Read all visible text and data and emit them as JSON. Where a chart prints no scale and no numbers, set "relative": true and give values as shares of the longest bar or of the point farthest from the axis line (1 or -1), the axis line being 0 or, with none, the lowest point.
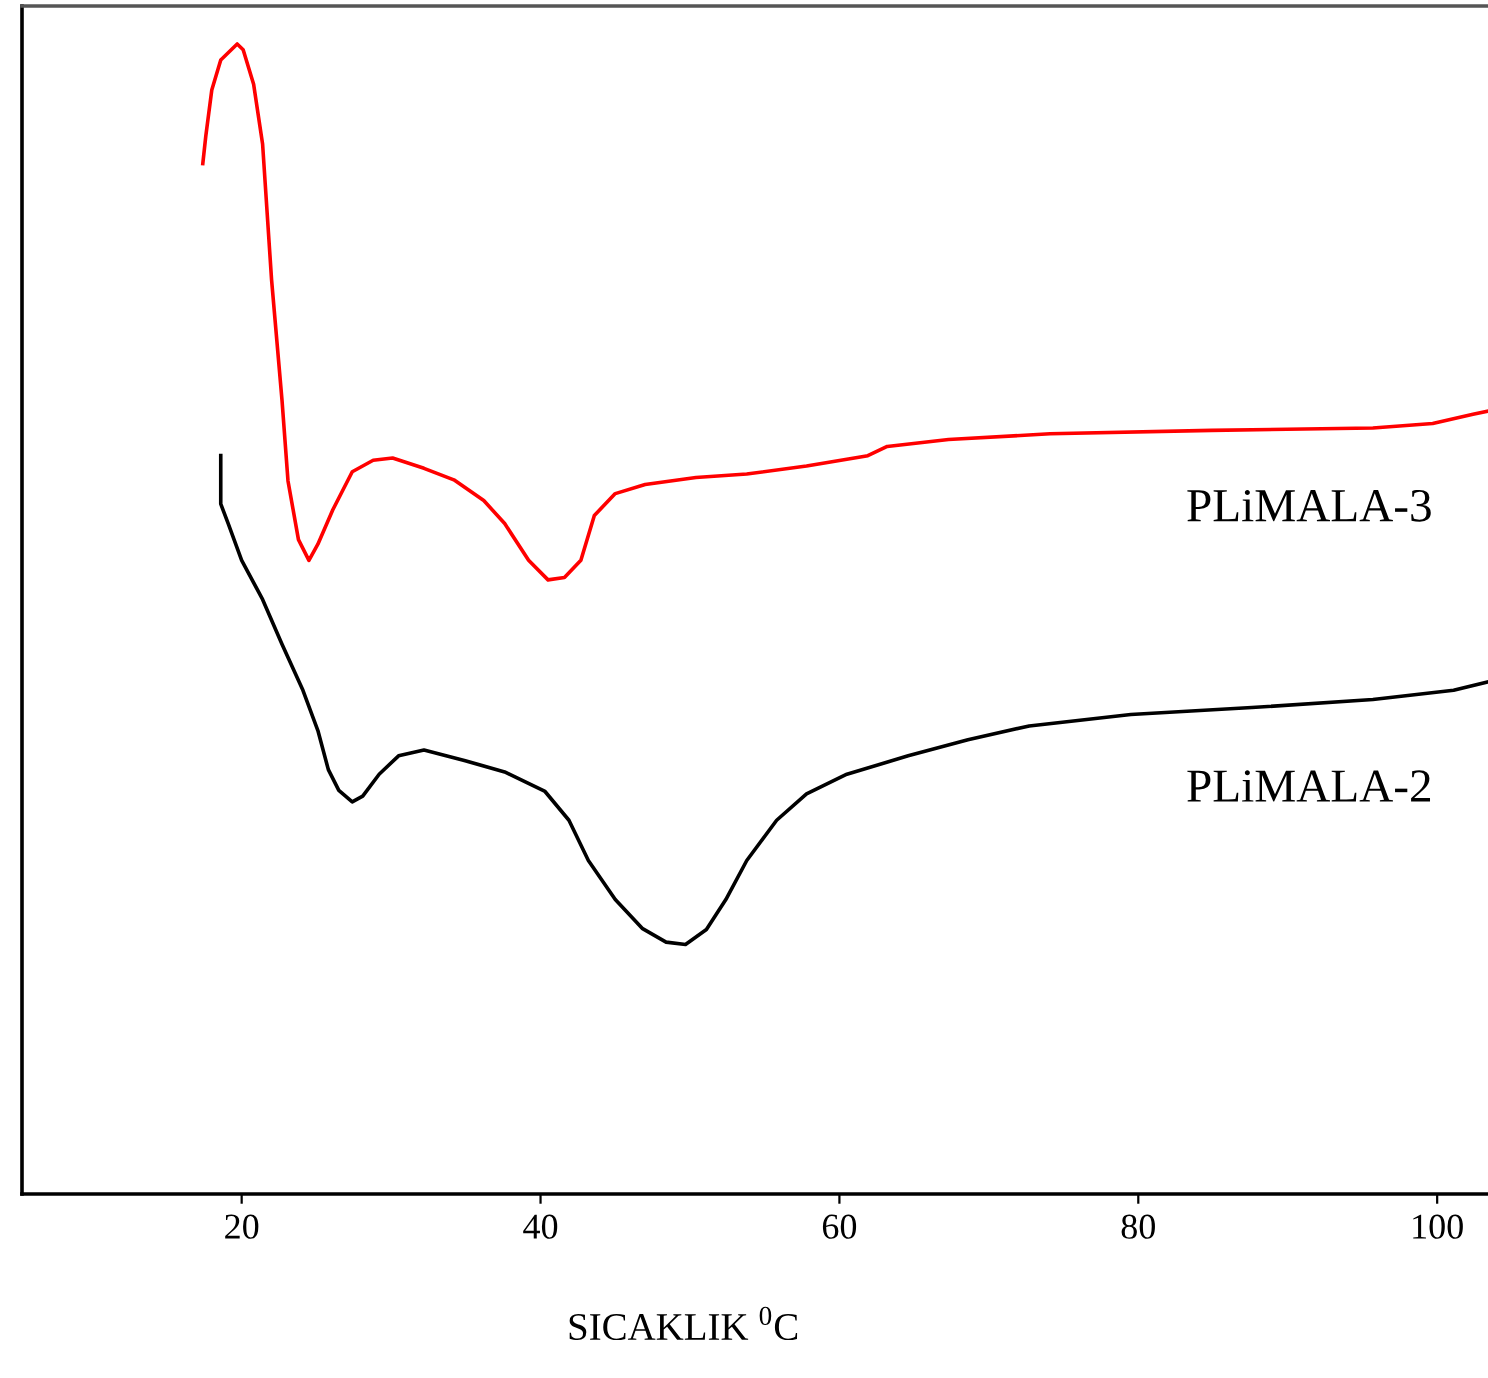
{
  "chart_data": {
    "type": "line",
    "xlabel": "SICAKLIK $^{0}$C",
    "relative": true,
    "xlim": [
      5.3,
      103.9
    ],
    "xticks": [
      20,
      40,
      60,
      80,
      100
    ],
    "grid": false,
    "legend": false,
    "tick_labels": "x",
    "marker": "none",
    "line_style": "solid",
    "series": [
      {
        "name": "PLiMALA-3",
        "color": "#ff0000",
        "x": [
          17.4,
          17.6,
          18.0,
          18.6,
          19.7,
          20.1,
          20.8,
          21.4,
          22.0,
          22.7,
          23.1,
          23.8,
          24.5,
          25.1,
          26.1,
          27.4,
          28.8,
          30.1,
          32.2,
          34.2,
          36.2,
          37.6,
          39.2,
          40.5,
          41.6,
          42.7,
          43.6,
          45.0,
          47.0,
          50.4,
          53.8,
          57.8,
          61.9,
          63.2,
          67.3,
          74.1,
          84.9,
          95.7,
          99.7,
          102.4,
          103.9
        ],
        "values": [
          0.896,
          0.92,
          0.96,
          0.986,
          1,
          0.995,
          0.965,
          0.913,
          0.795,
          0.69,
          0.62,
          0.569,
          0.551,
          0.565,
          0.595,
          0.628,
          0.638,
          0.64,
          0.631,
          0.621,
          0.603,
          0.583,
          0.551,
          0.534,
          0.536,
          0.551,
          0.59,
          0.609,
          0.617,
          0.623,
          0.626,
          0.633,
          0.642,
          0.65,
          0.656,
          0.661,
          0.664,
          0.666,
          0.67,
          0.678,
          0.682
        ]
      },
      {
        "name": "PLiMALA-2",
        "color": "#000000",
        "x": [
          18.6,
          18.6,
          19.1,
          20.0,
          21.4,
          22.7,
          24.1,
          25.1,
          25.8,
          26.5,
          27.4,
          28.1,
          29.2,
          30.5,
          32.2,
          34.9,
          37.6,
          40.3,
          41.9,
          43.2,
          45.0,
          46.8,
          48.4,
          49.7,
          51.1,
          52.4,
          53.8,
          55.8,
          57.8,
          60.5,
          64.6,
          68.6,
          72.7,
          79.5,
          87.6,
          95.7,
          101.1,
          103.9
        ],
        "values": [
          0.642,
          0.6,
          0.583,
          0.551,
          0.517,
          0.478,
          0.438,
          0.403,
          0.369,
          0.351,
          0.341,
          0.346,
          0.365,
          0.381,
          0.386,
          0.377,
          0.367,
          0.35,
          0.325,
          0.29,
          0.256,
          0.231,
          0.219,
          0.217,
          0.23,
          0.256,
          0.29,
          0.325,
          0.348,
          0.365,
          0.381,
          0.395,
          0.407,
          0.417,
          0.423,
          0.43,
          0.438,
          0.447
        ]
      }
    ]
  }
}
